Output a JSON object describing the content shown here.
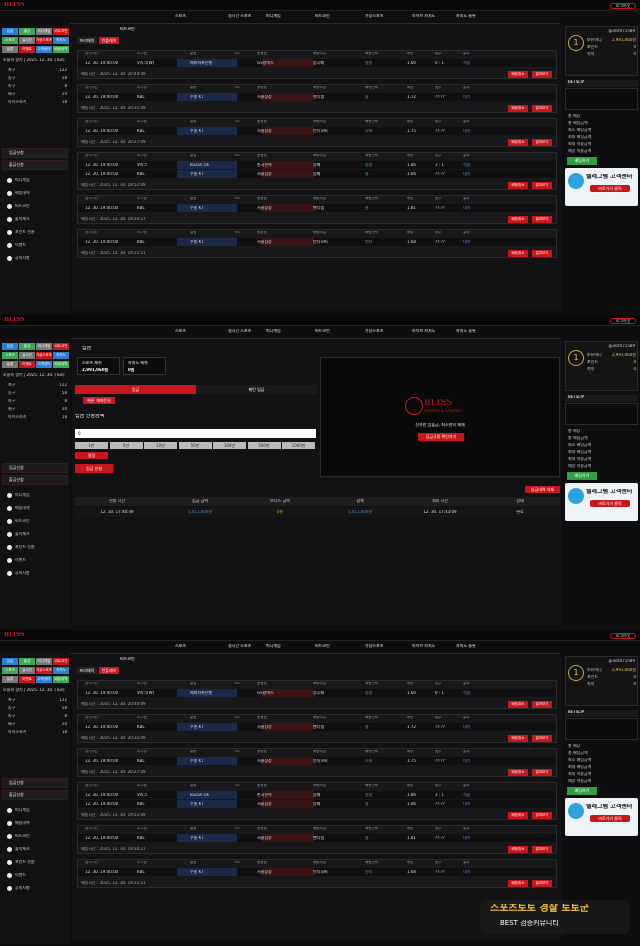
{
  "top_bar": {
    "logo": "BLISS",
    "logout": "로그아웃"
  },
  "nav": [
    "스포츠",
    "실시간 스포츠",
    "미니게임",
    "비트코인",
    "가상스포츠",
    "라이브 카지노",
    "카지노 슬롯"
  ],
  "sidebar": {
    "quick_menu": [
      "입금",
      "출금",
      "미니게임",
      "비트코인",
      "스포츠",
      "실시간",
      "가상스포츠",
      "카지노",
      "슬롯",
      "이벤트",
      "고객센터",
      "배팅내역"
    ],
    "date": "오늘의 경기 | 2025. 12. 30. (Tue)",
    "sports": [
      {
        "name": "축구",
        "count": "122"
      },
      {
        "name": "농구",
        "count": "58"
      },
      {
        "name": "야구",
        "count": "8"
      },
      {
        "name": "배구",
        "count": "20"
      },
      {
        "name": "아이스하키",
        "count": "18"
      }
    ],
    "menu": [
      "입금신청",
      "출금신청"
    ],
    "submenu": [
      "미니게임",
      "배팅내역",
      "비트코인",
      "출석체크",
      "포인트 전환",
      "이벤트",
      "공지사항"
    ]
  },
  "bet_history": {
    "title": "비트코인",
    "tabs": [
      "프리매치",
      "인플레이"
    ],
    "columns": [
      "경기시간",
      "리그명",
      "홈팀",
      "VS",
      "원정팀",
      "배팅타입",
      "배팅선택",
      "배당",
      "점수",
      "결과"
    ],
    "buttons": [
      "배팅취소",
      "결과보기"
    ],
    "cards": [
      {
        "games": [
          {
            "time": "12. 30. 19:00:00",
            "league": "V리그(W)",
            "home": "페퍼저축은행",
            "away": "GS칼텍스",
            "type": "승무패",
            "pick": "원정",
            "odds": "1.60",
            "score": "0 : 1",
            "result": "적중"
          }
        ],
        "bet_time": "배팅시간 : 2025. 12. 30. 20:44:09"
      },
      {
        "games": [
          {
            "time": "12. 30. 19:00:00",
            "league": "KBL",
            "home": "수원 KT",
            "away": "서울삼성",
            "type": "핸디캡",
            "pick": "홈",
            "odds": "1.72",
            "score": "??:??",
            "result": "대기"
          }
        ],
        "bet_time": "배팅시간 : 2025. 12. 30. 20:31:09"
      },
      {
        "games": [
          {
            "time": "12. 30. 19:00:00",
            "league": "KBL",
            "home": "수원 KT",
            "away": "서울삼성",
            "type": "언더오버",
            "pick": "오버",
            "odds": "1.75",
            "score": "??:??",
            "result": "대기"
          }
        ],
        "bet_time": "배팅시간 : 2025. 12. 30. 20:27:09"
      },
      {
        "games": [
          {
            "time": "12. 30. 19:00:00",
            "league": "V리그",
            "home": "Busan Ok",
            "away": "한국전력",
            "type": "승패",
            "pick": "원정",
            "odds": "1.86",
            "score": "3 : 1",
            "result": "적중"
          },
          {
            "time": "12. 30. 19:00:00",
            "league": "KBL",
            "home": "수원 KT",
            "away": "서울삼성",
            "type": "승패",
            "pick": "홈",
            "odds": "1.66",
            "score": "??:??",
            "result": "대기"
          }
        ],
        "bet_time": "배팅시간 : 2025. 12. 30. 19:52:09"
      },
      {
        "games": [
          {
            "time": "12. 30. 19:00:00",
            "league": "KBL",
            "home": "수원 KT",
            "away": "서울삼성",
            "type": "핸디캡",
            "pick": "홈",
            "odds": "1.81",
            "score": "??:??",
            "result": "대기"
          }
        ],
        "bet_time": "배팅시간 : 2025. 12. 30. 19:34:27"
      },
      {
        "games": [
          {
            "time": "12. 30. 19:00:00",
            "league": "KBL",
            "home": "수원 KT",
            "away": "서울삼성",
            "type": "언더오버",
            "pick": "언더",
            "odds": "1.68",
            "score": "??:??",
            "result": "대기"
          }
        ],
        "bet_time": "배팅시간 : 2025. 12. 30. 19:11:51"
      }
    ]
  },
  "deposit": {
    "title": "입금",
    "cash": [
      {
        "label": "스포츠 캐쉬",
        "amount": "2,991,060원"
      },
      {
        "label": "카지노 캐쉬",
        "amount": "0원"
      }
    ],
    "tabs": [
      "입금",
      "패턴 입금"
    ],
    "notice_button": "빠른 계좌문의",
    "amount_title": "입금 신청금액",
    "input": "0",
    "amount_buttons": [
      "1만",
      "5만",
      "10만",
      "50만",
      "100만",
      "500만",
      "1000만"
    ],
    "reset": "정정",
    "submit": "입금 신청",
    "banner": {
      "logo": "BLISS",
      "sub": "SPORTS & CASINO",
      "slogan": "신속한 입출금, 최소한의 제재",
      "button": "입금규정 확인하기"
    },
    "delete_button": "입금내역 삭제",
    "table": {
      "headers": [
        "신청 시간",
        "입금 금액",
        "보너스 금액",
        "합계",
        "처리 시간",
        "상태"
      ],
      "rows": [
        [
          "12. 30. 17:40:49",
          "1,011,000원",
          "0원",
          "1,011,000원",
          "12. 30. 17:43:09",
          "완료"
        ]
      ]
    }
  },
  "right_panel": {
    "user": "guest071589",
    "level": "1",
    "money": [
      {
        "label": "보유머니",
        "value": "2,991,060원"
      },
      {
        "label": "포인트",
        "value": "0"
      },
      {
        "label": "쪽지",
        "value": "0"
      }
    ],
    "betslip": "BETSLIP",
    "stats": [
      "총 배당",
      "총 배팅금액",
      "최소 배팅금액",
      "최대 배팅금액",
      "최대 적중금액",
      "예상 적중금액"
    ],
    "bet_button": "배팅하기",
    "telegram": "텔레그램 고객센터",
    "telegram_link": "바로가기 클릭"
  },
  "watermark": {
    "title": "스포츠토토 경찰 토토군",
    "sub": "BEST 검증커뮤니티"
  }
}
